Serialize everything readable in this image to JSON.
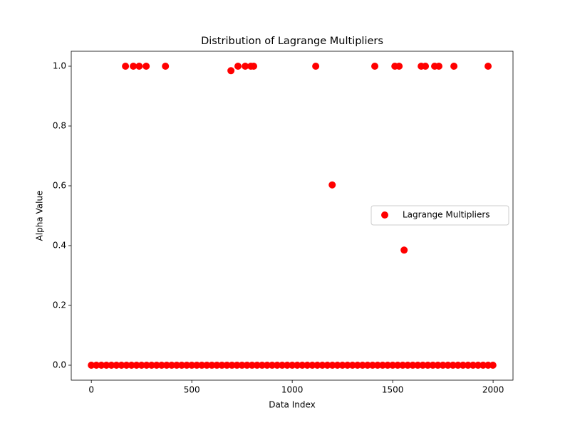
{
  "chart_data": {
    "type": "scatter",
    "title": "Distribution of Lagrange Multipliers",
    "x_label": "Data Index",
    "y_label": "Alpha Value",
    "series": [
      {
        "name": "Lagrange Multipliers",
        "color": "#ff0000",
        "x": [
          0,
          25,
          50,
          75,
          100,
          125,
          150,
          175,
          200,
          225,
          250,
          275,
          300,
          325,
          350,
          375,
          400,
          425,
          450,
          475,
          500,
          525,
          550,
          575,
          600,
          625,
          650,
          675,
          700,
          725,
          750,
          775,
          800,
          825,
          850,
          875,
          900,
          925,
          950,
          975,
          1000,
          1025,
          1050,
          1075,
          1100,
          1125,
          1150,
          1175,
          1200,
          1225,
          1250,
          1275,
          1300,
          1325,
          1350,
          1375,
          1400,
          1425,
          1450,
          1475,
          1500,
          1525,
          1550,
          1575,
          1600,
          1625,
          1650,
          1675,
          1700,
          1725,
          1750,
          1775,
          1800,
          1825,
          1850,
          1875,
          1900,
          1925,
          1950,
          1975,
          1999,
          170,
          209,
          238,
          273,
          369,
          695,
          730,
          766,
          794,
          808,
          1117,
          1199,
          1411,
          1511,
          1532,
          1557,
          1642,
          1663,
          1709,
          1730,
          1805,
          1975
        ],
        "values": [
          0,
          0,
          0,
          0,
          0,
          0,
          0,
          0,
          0,
          0,
          0,
          0,
          0,
          0,
          0,
          0,
          0,
          0,
          0,
          0,
          0,
          0,
          0,
          0,
          0,
          0,
          0,
          0,
          0,
          0,
          0,
          0,
          0,
          0,
          0,
          0,
          0,
          0,
          0,
          0,
          0,
          0,
          0,
          0,
          0,
          0,
          0,
          0,
          0,
          0,
          0,
          0,
          0,
          0,
          0,
          0,
          0,
          0,
          0,
          0,
          0,
          0,
          0,
          0,
          0,
          0,
          0,
          0,
          0,
          0,
          0,
          0,
          0,
          0,
          0,
          0,
          0,
          0,
          0,
          0,
          0,
          1,
          1,
          1,
          1,
          1,
          0.985,
          1,
          1,
          1,
          1,
          1,
          0.603,
          1,
          1,
          1,
          0.385,
          1,
          1,
          1,
          1,
          1,
          1
        ]
      }
    ],
    "xlim": [
      -100,
      2099
    ],
    "ylim": [
      -0.05,
      1.05
    ],
    "xticks": [
      0,
      500,
      1000,
      1500,
      2000
    ],
    "yticks": [
      {
        "value": 0,
        "label": "0.0"
      },
      {
        "value": 0.2,
        "label": "0.2"
      },
      {
        "value": 0.4,
        "label": "0.4"
      },
      {
        "value": 0.6,
        "label": "0.6"
      },
      {
        "value": 0.8,
        "label": "0.8"
      },
      {
        "value": 1,
        "label": "1.0"
      }
    ],
    "legend": "center right"
  }
}
